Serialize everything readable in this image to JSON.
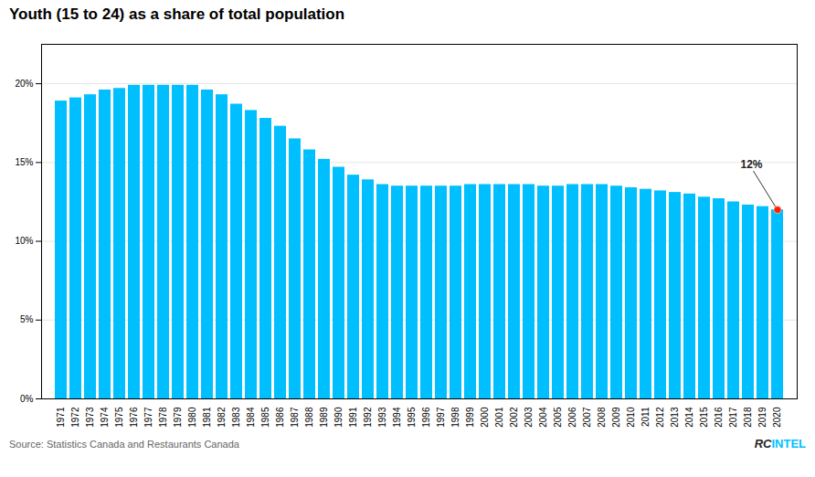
{
  "chart_data": {
    "type": "bar",
    "title": "Youth (15 to 24) as a share of total population",
    "categories": [
      "1971",
      "1972",
      "1973",
      "1974",
      "1975",
      "1976",
      "1977",
      "1978",
      "1979",
      "1980",
      "1981",
      "1982",
      "1983",
      "1984",
      "1985",
      "1986",
      "1987",
      "1988",
      "1989",
      "1990",
      "1991",
      "1992",
      "1993",
      "1994",
      "1995",
      "1996",
      "1997",
      "1998",
      "1999",
      "2000",
      "2001",
      "2002",
      "2003",
      "2004",
      "2005",
      "2006",
      "2007",
      "2008",
      "2009",
      "2010",
      "2011",
      "2012",
      "2013",
      "2014",
      "2015",
      "2016",
      "2017",
      "2018",
      "2019",
      "2020"
    ],
    "values": [
      0.189,
      0.191,
      0.193,
      0.196,
      0.197,
      0.199,
      0.199,
      0.199,
      0.199,
      0.199,
      0.196,
      0.193,
      0.187,
      0.183,
      0.178,
      0.173,
      0.165,
      0.158,
      0.152,
      0.147,
      0.142,
      0.139,
      0.136,
      0.135,
      0.135,
      0.135,
      0.135,
      0.135,
      0.136,
      0.136,
      0.136,
      0.136,
      0.136,
      0.135,
      0.135,
      0.136,
      0.136,
      0.136,
      0.135,
      0.134,
      0.133,
      0.132,
      0.131,
      0.13,
      0.128,
      0.127,
      0.125,
      0.123,
      0.122,
      0.12
    ],
    "color": "#00BFFF",
    "ylim": [
      0,
      0.225
    ],
    "yticks": [
      {
        "value": 0,
        "label": "0%"
      },
      {
        "value": 0.05,
        "label": "5%"
      },
      {
        "value": 0.1,
        "label": "10%"
      },
      {
        "value": 0.15,
        "label": "15%"
      },
      {
        "value": 0.2,
        "label": "20%"
      }
    ],
    "grid": true,
    "annotations": [
      {
        "text": "12%",
        "category": "2020",
        "value": 0.12,
        "color": "#FF2200"
      }
    ],
    "source": "Source: Statistics Canada and Restaurants Canada",
    "logo": [
      "RC",
      "INTEL"
    ]
  }
}
